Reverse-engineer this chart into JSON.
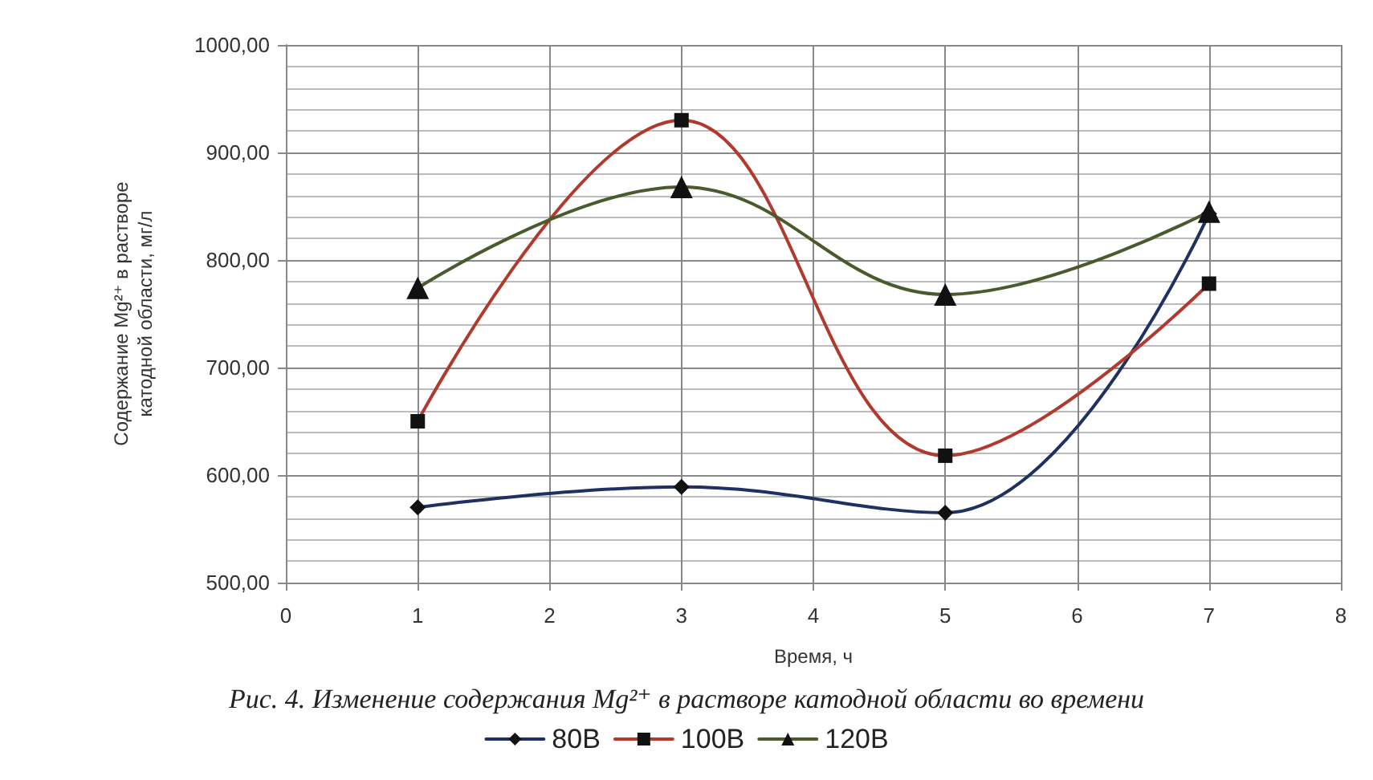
{
  "chart_data": {
    "type": "line",
    "xlabel": "Время, ч",
    "ylabel": "Содержание Mg²⁺ в растворе катодной области, мг/л",
    "annotations": [
      "Рис. 4. Изменение содержания Mg²⁺ в растворе катодной области во времени"
    ],
    "x": [
      1,
      3,
      5,
      7
    ],
    "series": [
      {
        "name": "80В",
        "color": "#1f3160",
        "marker": "diamond",
        "values": [
          570,
          589,
          565,
          843
        ]
      },
      {
        "name": "100В",
        "color": "#b03a2e",
        "marker": "square",
        "values": [
          650,
          930,
          618,
          778
        ]
      },
      {
        "name": "120В",
        "color": "#4a5a2c",
        "marker": "triangle",
        "values": [
          774,
          868,
          768,
          845
        ]
      }
    ],
    "xlim": [
      0,
      8
    ],
    "xticks": [
      0,
      1,
      2,
      3,
      4,
      5,
      6,
      7,
      8
    ],
    "ylim": [
      500,
      1000
    ],
    "yticks": [
      {
        "value": 500,
        "label": "500,00"
      },
      {
        "value": 600,
        "label": "600,00"
      },
      {
        "value": 700,
        "label": "700,00"
      },
      {
        "value": 800,
        "label": "800,00"
      },
      {
        "value": 900,
        "label": "900,00"
      },
      {
        "value": 1000,
        "label": "1000,00"
      }
    ],
    "grid": true,
    "legend": "bottom"
  }
}
